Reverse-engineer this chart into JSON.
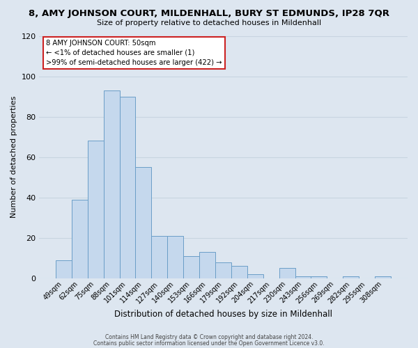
{
  "title": "8, AMY JOHNSON COURT, MILDENHALL, BURY ST EDMUNDS, IP28 7QR",
  "subtitle": "Size of property relative to detached houses in Mildenhall",
  "xlabel": "Distribution of detached houses by size in Mildenhall",
  "ylabel": "Number of detached properties",
  "bin_labels": [
    "49sqm",
    "62sqm",
    "75sqm",
    "88sqm",
    "101sqm",
    "114sqm",
    "127sqm",
    "140sqm",
    "153sqm",
    "166sqm",
    "179sqm",
    "192sqm",
    "204sqm",
    "217sqm",
    "230sqm",
    "243sqm",
    "256sqm",
    "269sqm",
    "282sqm",
    "295sqm",
    "308sqm"
  ],
  "bar_values": [
    9,
    39,
    68,
    93,
    90,
    55,
    21,
    21,
    11,
    13,
    8,
    6,
    2,
    0,
    5,
    1,
    1,
    0,
    1,
    0,
    1
  ],
  "bar_color": "#c5d8ed",
  "bar_edge_color": "#6a9ec7",
  "background_color": "#dde6f0",
  "plot_bg_color": "#dde6f0",
  "grid_color": "#c8d4e0",
  "ylim": [
    0,
    120
  ],
  "yticks": [
    0,
    20,
    40,
    60,
    80,
    100,
    120
  ],
  "annotation_line1": "8 AMY JOHNSON COURT: 50sqm",
  "annotation_line2": "← <1% of detached houses are smaller (1)",
  "annotation_line3": ">99% of semi-detached houses are larger (422) →",
  "annotation_box_color": "#ffffff",
  "annotation_box_edge_color": "#cc2222",
  "footer_line1": "Contains HM Land Registry data © Crown copyright and database right 2024.",
  "footer_line2": "Contains public sector information licensed under the Open Government Licence v3.0."
}
